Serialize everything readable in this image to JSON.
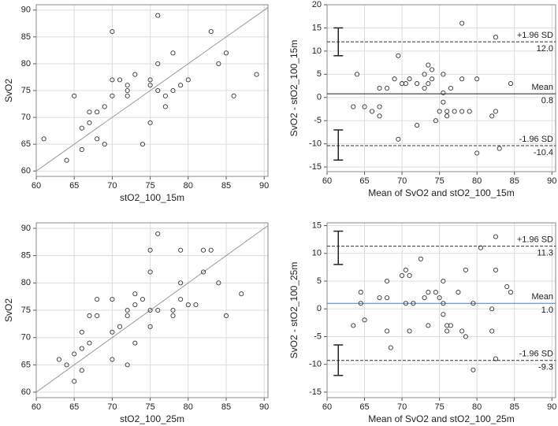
{
  "chart_data": [
    {
      "type": "scatter",
      "xlabel": "stO2_100_15m",
      "ylabel": "SvO2",
      "xlim": [
        60,
        90.5
      ],
      "ylim": [
        59,
        91
      ],
      "xticks": [
        60,
        65,
        70,
        75,
        80,
        85,
        90
      ],
      "yticks": [
        60,
        65,
        70,
        75,
        80,
        85,
        90
      ],
      "grid": true,
      "reference_line": "identity",
      "color": "#333333",
      "x": [
        61,
        64,
        65,
        66,
        66,
        67,
        67,
        68,
        68,
        69,
        69,
        70,
        70,
        70,
        71,
        72,
        72,
        72,
        73,
        74,
        75,
        75,
        75,
        76,
        76,
        76,
        77,
        77,
        78,
        78,
        79,
        80,
        83,
        84,
        85,
        86,
        89
      ],
      "y": [
        66,
        62,
        74,
        64,
        68,
        69,
        71,
        71,
        66,
        65,
        72,
        74,
        77,
        86,
        77,
        74,
        75,
        76,
        78,
        65,
        69,
        76,
        77,
        75,
        80,
        89,
        72,
        74,
        82,
        75,
        76,
        77,
        86,
        80,
        82,
        74,
        78
      ]
    },
    {
      "type": "bland-altman",
      "xlabel": "Mean of SvO2 and stO2_100_15m",
      "ylabel": "SvO2 - stO2_100_15m",
      "xlim": [
        60,
        90.5
      ],
      "ylim": [
        -16,
        20
      ],
      "xticks": [
        60,
        65,
        70,
        75,
        80,
        85,
        90
      ],
      "yticks": [
        -15,
        -10,
        -5,
        0,
        5,
        10,
        15,
        20
      ],
      "grid": true,
      "color": "#333333",
      "lines": [
        {
          "label": "+1.96 SD",
          "value": 12,
          "value_label": "12.0",
          "color": "#333333",
          "dash": true
        },
        {
          "label": "Mean",
          "value": 0.8,
          "color": "#222222",
          "dash": false
        },
        {
          "label": "-1.96 SD",
          "value": -10.4,
          "color": "#333333",
          "dash": true
        }
      ],
      "ci_x": 61.5,
      "ci": [
        {
          "low": 9,
          "high": 15
        },
        {
          "low": -13.5,
          "high": -7
        }
      ],
      "x": [
        63.5,
        64,
        65,
        66,
        67,
        67,
        67,
        68,
        69,
        69.5,
        69.5,
        70,
        70.5,
        71,
        72,
        72,
        73,
        73,
        73.5,
        73.5,
        74,
        74,
        74.5,
        75,
        75.5,
        75.5,
        75.5,
        76,
        76,
        76.5,
        77,
        78,
        78,
        78,
        79,
        80,
        80,
        82,
        82.5,
        83,
        82.5,
        84.5
      ],
      "y": [
        -2,
        5,
        -2,
        -3,
        -2,
        -4,
        2,
        2,
        4,
        -9,
        9,
        3,
        3,
        4,
        3,
        -6,
        2,
        5,
        3,
        7,
        4,
        6,
        -5,
        -3,
        -1,
        1,
        5,
        -3,
        -4,
        2,
        -3,
        -3,
        4,
        16,
        -3,
        4,
        -12,
        -4,
        -3,
        -11,
        13,
        3
      ]
    },
    {
      "type": "scatter",
      "xlabel": "stO2_100_25m",
      "ylabel": "SvO2",
      "xlim": [
        60,
        90.5
      ],
      "ylim": [
        59,
        91
      ],
      "xticks": [
        60,
        65,
        70,
        75,
        80,
        85,
        90
      ],
      "yticks": [
        60,
        65,
        70,
        75,
        80,
        85,
        90
      ],
      "grid": true,
      "reference_line": "identity",
      "color": "#333333",
      "x": [
        63,
        64,
        65,
        65,
        66,
        66,
        66,
        67,
        67,
        68,
        68,
        70,
        70,
        70,
        71,
        72,
        72,
        72,
        73,
        73,
        73,
        74,
        75,
        75,
        75,
        75,
        76,
        76,
        78,
        78,
        79,
        79,
        79,
        80,
        81,
        82,
        82,
        83,
        84,
        85,
        87
      ],
      "y": [
        66,
        65,
        62,
        67,
        64,
        68,
        71,
        69,
        74,
        74,
        77,
        66,
        71,
        77,
        72,
        65,
        74,
        75,
        69,
        76,
        78,
        77,
        72,
        75,
        82,
        86,
        75,
        89,
        74,
        75,
        77,
        80,
        86,
        76,
        76,
        82,
        86,
        86,
        80,
        74,
        78
      ]
    },
    {
      "type": "bland-altman",
      "xlabel": "Mean of SvO2 and stO2_100_25m",
      "ylabel": "SvO2 - stO2_100_25m",
      "xlim": [
        60,
        90.5
      ],
      "ylim": [
        -16,
        15.5
      ],
      "xticks": [
        60,
        65,
        70,
        75,
        80,
        85,
        90
      ],
      "yticks": [
        -15,
        -10,
        -5,
        0,
        5,
        10,
        15
      ],
      "grid": true,
      "color": "#333333",
      "lines": [
        {
          "label": "+1.96 SD",
          "value": 11.3,
          "color": "#333333",
          "dash": true
        },
        {
          "label": "Mean",
          "value": 1,
          "value_label": "1.0",
          "color": "#4a7fc1",
          "dash": false
        },
        {
          "label": "-1.96 SD",
          "value": -9.3,
          "color": "#333333",
          "dash": true
        }
      ],
      "ci_x": 61.5,
      "ci": [
        {
          "low": 8,
          "high": 14
        },
        {
          "low": -12,
          "high": -6.5
        }
      ],
      "x": [
        63.5,
        64.5,
        64.5,
        65,
        67,
        68,
        68,
        68,
        68.5,
        70,
        70.5,
        70.5,
        71,
        71,
        71.5,
        72.5,
        73,
        73.5,
        73.5,
        74.5,
        75,
        75.5,
        75.5,
        75.5,
        76,
        76,
        76.5,
        77.5,
        78,
        78.5,
        78.5,
        79.5,
        79.5,
        80.5,
        82,
        82,
        82.5,
        82.5,
        82.5,
        84,
        84.5
      ],
      "y": [
        -3,
        1,
        3,
        -2,
        2,
        2,
        5,
        -4,
        -7,
        6,
        1,
        7,
        -4,
        6,
        1,
        9,
        2,
        3,
        -3,
        3,
        2,
        -1,
        1,
        5,
        -3,
        -4,
        -3,
        3,
        -4,
        -5,
        7,
        -11,
        1,
        11,
        -4,
        0,
        7,
        13,
        -9,
        4,
        3
      ]
    }
  ]
}
